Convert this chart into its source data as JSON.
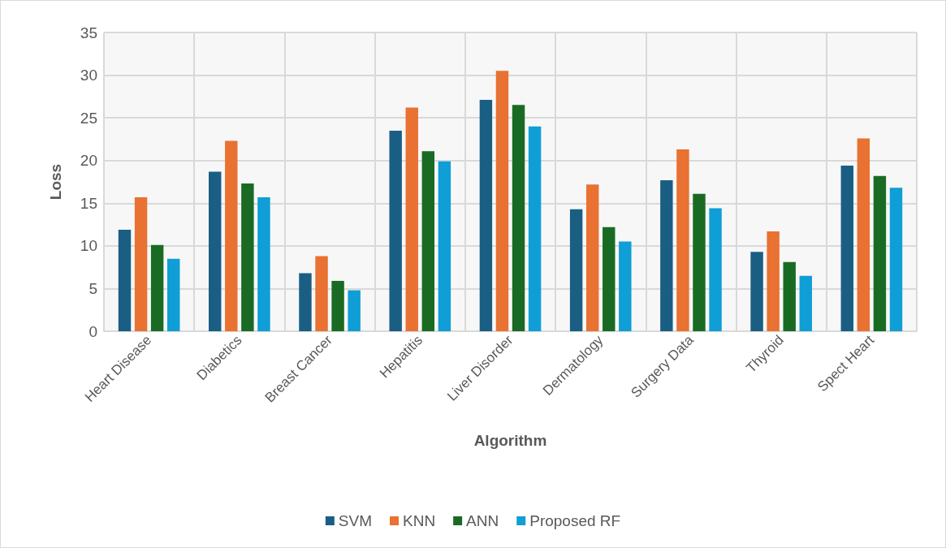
{
  "chart_data": {
    "type": "bar",
    "xlabel": "Algorithm",
    "ylabel": "Loss",
    "categories": [
      "Heart Disease",
      "Diabetics",
      "Breast Cancer",
      "Hepatitis",
      "Liver Disorder",
      "Dermatology",
      "Surgery Data",
      "Thyroid",
      "Spect Heart"
    ],
    "series": [
      {
        "name": "SVM",
        "color": "#1a5e84",
        "values": [
          11.9,
          18.7,
          6.8,
          23.5,
          27.1,
          14.3,
          17.7,
          9.3,
          19.4
        ]
      },
      {
        "name": "KNN",
        "color": "#e97132",
        "values": [
          15.7,
          22.3,
          8.8,
          26.2,
          30.5,
          17.2,
          21.3,
          11.7,
          22.6
        ]
      },
      {
        "name": "ANN",
        "color": "#196b24",
        "values": [
          10.1,
          17.3,
          5.9,
          21.1,
          26.5,
          12.2,
          16.1,
          8.1,
          18.2
        ]
      },
      {
        "name": "Proposed RF",
        "color": "#0f9ed5",
        "values": [
          8.5,
          15.7,
          4.8,
          19.9,
          24.0,
          10.5,
          14.4,
          6.5,
          16.8
        ]
      }
    ],
    "ylim": [
      0,
      35
    ],
    "yticks": [
      0,
      5,
      10,
      15,
      20,
      25,
      30,
      35
    ],
    "grid": true,
    "legend": "bottom"
  }
}
